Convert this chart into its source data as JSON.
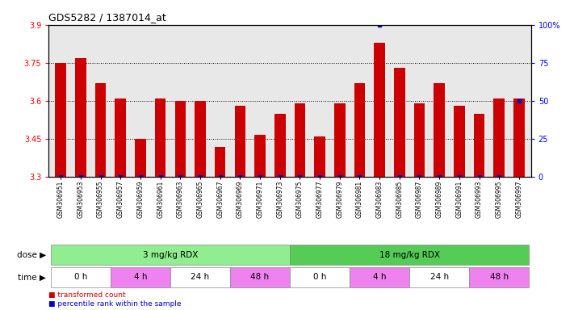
{
  "title": "GDS5282 / 1387014_at",
  "samples": [
    "GSM306951",
    "GSM306953",
    "GSM306955",
    "GSM306957",
    "GSM306959",
    "GSM306961",
    "GSM306963",
    "GSM306965",
    "GSM306967",
    "GSM306969",
    "GSM306971",
    "GSM306973",
    "GSM306975",
    "GSM306977",
    "GSM306979",
    "GSM306981",
    "GSM306983",
    "GSM306985",
    "GSM306987",
    "GSM306989",
    "GSM306991",
    "GSM306993",
    "GSM306995",
    "GSM306997"
  ],
  "red_values": [
    3.75,
    3.77,
    3.67,
    3.61,
    3.45,
    3.61,
    3.6,
    3.6,
    3.42,
    3.58,
    3.465,
    3.55,
    3.59,
    3.46,
    3.59,
    3.67,
    3.83,
    3.73,
    3.59,
    3.67,
    3.58,
    3.55,
    3.61,
    3.61
  ],
  "blue_values": [
    0,
    0,
    0,
    0,
    0,
    0,
    0,
    0,
    0,
    0,
    0,
    0,
    0,
    0,
    0,
    0,
    100,
    0,
    0,
    0,
    0,
    0,
    0,
    50
  ],
  "ymin": 3.3,
  "ymax": 3.9,
  "yright_min": 0,
  "yright_max": 100,
  "yticks_left": [
    3.3,
    3.45,
    3.6,
    3.75,
    3.9
  ],
  "yticks_right": [
    0,
    25,
    50,
    75,
    100
  ],
  "ytick_labels_left": [
    "3.3",
    "3.45",
    "3.6",
    "3.75",
    "3.9"
  ],
  "ytick_labels_right": [
    "0",
    "25",
    "50",
    "75",
    "100%"
  ],
  "dose_groups": [
    {
      "label": "3 mg/kg RDX",
      "start": 0,
      "end": 12,
      "color": "#90EE90"
    },
    {
      "label": "18 mg/kg RDX",
      "start": 12,
      "end": 24,
      "color": "#55CC55"
    }
  ],
  "time_groups": [
    {
      "label": "0 h",
      "start": 0,
      "end": 3,
      "color": "#FFFFFF"
    },
    {
      "label": "4 h",
      "start": 3,
      "end": 6,
      "color": "#EE82EE"
    },
    {
      "label": "24 h",
      "start": 6,
      "end": 9,
      "color": "#FFFFFF"
    },
    {
      "label": "48 h",
      "start": 9,
      "end": 12,
      "color": "#EE82EE"
    },
    {
      "label": "0 h",
      "start": 12,
      "end": 15,
      "color": "#FFFFFF"
    },
    {
      "label": "4 h",
      "start": 15,
      "end": 18,
      "color": "#EE82EE"
    },
    {
      "label": "24 h",
      "start": 18,
      "end": 21,
      "color": "#FFFFFF"
    },
    {
      "label": "48 h",
      "start": 21,
      "end": 24,
      "color": "#EE82EE"
    }
  ],
  "bar_color": "#CC0000",
  "blue_dot_color": "#0000CC",
  "bg_color": "#FFFFFF",
  "plot_bg_color": "#E8E8E8",
  "legend_items": [
    {
      "label": "transformed count",
      "color": "#CC0000"
    },
    {
      "label": "percentile rank within the sample",
      "color": "#0000CC"
    }
  ]
}
